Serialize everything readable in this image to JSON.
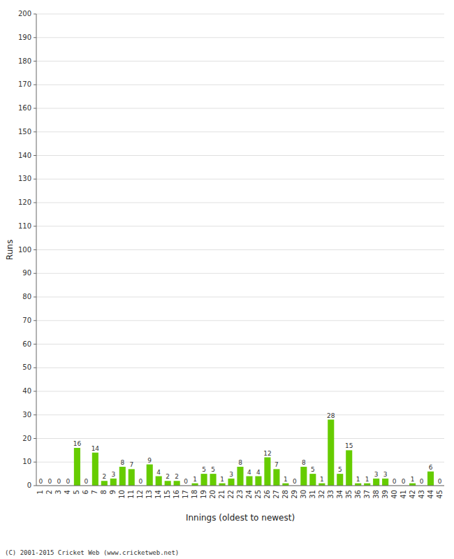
{
  "chart_data": {
    "type": "bar",
    "x_label": "Innings (oldest to newest)",
    "y_label": "Runs",
    "categories": [
      1,
      2,
      3,
      4,
      5,
      6,
      7,
      8,
      9,
      10,
      11,
      12,
      13,
      14,
      15,
      16,
      17,
      18,
      19,
      20,
      21,
      22,
      23,
      24,
      25,
      26,
      27,
      28,
      29,
      30,
      31,
      32,
      33,
      34,
      35,
      36,
      37,
      38,
      39,
      40,
      41,
      42,
      43,
      44,
      45
    ],
    "values": [
      0,
      0,
      0,
      0,
      16,
      0,
      14,
      2,
      3,
      8,
      7,
      0,
      9,
      4,
      2,
      2,
      0,
      1,
      5,
      5,
      1,
      3,
      8,
      4,
      4,
      12,
      7,
      1,
      0,
      8,
      5,
      1,
      28,
      5,
      15,
      1,
      1,
      3,
      3,
      0,
      0,
      1,
      0,
      6,
      0
    ],
    "color": "#66cc00",
    "ylim": [
      0,
      200
    ],
    "yticks": [
      0,
      10,
      20,
      30,
      40,
      50,
      60,
      70,
      80,
      90,
      100,
      110,
      120,
      130,
      140,
      150,
      160,
      170,
      180,
      190,
      200
    ],
    "grid": true,
    "data_labels": true,
    "annotations": [
      "(C) 2001-2015 Cricket Web (www.cricketweb.net)"
    ]
  }
}
